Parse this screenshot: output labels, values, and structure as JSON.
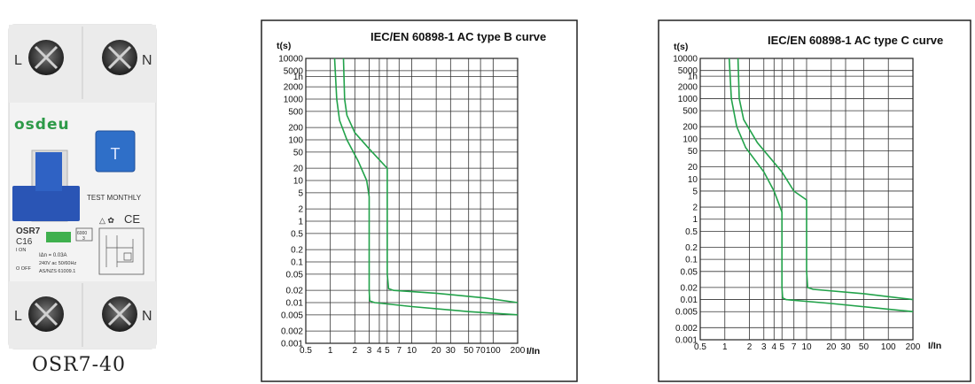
{
  "device": {
    "brand": "osdeu",
    "terminal_top_left": "L",
    "terminal_top_right": "N",
    "terminal_bottom_left": "L",
    "terminal_bottom_right": "N",
    "test_button": "T",
    "test_label": "TEST MONTHLY",
    "model": "OSR7",
    "rating": "C16",
    "on_label": "I ON",
    "off_label": "O OFF",
    "idn": "IΔn = 0.03A",
    "voltage": "240V  ac  50/60Hz",
    "standard": "AS/NZS 61009.1",
    "box_code": "6000",
    "box_num": "3",
    "ce_mark": "CE",
    "caption": "OSR7-40",
    "colors": {
      "body": "#f2f2f2",
      "brand": "#2d9a48",
      "button": "#2f6fc8",
      "handle": "#2a55b5"
    }
  },
  "chart_data": [
    {
      "type": "line",
      "title": "IEC/EN 60898-1 AC type B curve",
      "ylabel": "t(s)",
      "xlabel": "I/In",
      "xscale": "log",
      "yscale": "log",
      "xlim": [
        0.5,
        200
      ],
      "ylim": [
        0.001,
        10000
      ],
      "grid": true,
      "x_ticks": [
        {
          "v": 0.5,
          "label": "0.5"
        },
        {
          "v": 1,
          "label": "1"
        },
        {
          "v": 2,
          "label": "2"
        },
        {
          "v": 3,
          "label": "3"
        },
        {
          "v": 4,
          "label": "4"
        },
        {
          "v": 5,
          "label": "5"
        },
        {
          "v": 7,
          "label": "7"
        },
        {
          "v": 10,
          "label": "10"
        },
        {
          "v": 20,
          "label": "20"
        },
        {
          "v": 30,
          "label": "30"
        },
        {
          "v": 50,
          "label": "50"
        },
        {
          "v": 70,
          "label": "70"
        },
        {
          "v": 100,
          "label": "100"
        },
        {
          "v": 200,
          "label": "200"
        }
      ],
      "y_ticks": [
        {
          "v": 10000,
          "label": "10000"
        },
        {
          "v": 5000,
          "label": "5000"
        },
        {
          "v": 3600,
          "label": "1h"
        },
        {
          "v": 2000,
          "label": "2000"
        },
        {
          "v": 1000,
          "label": "1000"
        },
        {
          "v": 500,
          "label": "500"
        },
        {
          "v": 200,
          "label": "200"
        },
        {
          "v": 100,
          "label": "100"
        },
        {
          "v": 50,
          "label": "50"
        },
        {
          "v": 20,
          "label": "20"
        },
        {
          "v": 10,
          "label": "10"
        },
        {
          "v": 5,
          "label": "5"
        },
        {
          "v": 2,
          "label": "2"
        },
        {
          "v": 1,
          "label": "1"
        },
        {
          "v": 0.5,
          "label": "0.5"
        },
        {
          "v": 0.2,
          "label": "0.2"
        },
        {
          "v": 0.1,
          "label": "0.1"
        },
        {
          "v": 0.05,
          "label": "0.05"
        },
        {
          "v": 0.02,
          "label": "0.02"
        },
        {
          "v": 0.01,
          "label": "0.01"
        },
        {
          "v": 0.005,
          "label": "0.005"
        },
        {
          "v": 0.002,
          "label": "0.002"
        },
        {
          "v": 0.001,
          "label": "0.001"
        }
      ],
      "series": [
        {
          "points": [
            [
              1.13,
              10000
            ],
            [
              1.2,
              1000
            ],
            [
              1.3,
              300
            ],
            [
              1.6,
              100
            ],
            [
              2.2,
              30
            ],
            [
              2.8,
              10
            ],
            [
              3,
              4
            ],
            [
              3,
              0.02
            ],
            [
              3.05,
              0.011
            ],
            [
              3.5,
              0.01
            ],
            [
              10,
              0.008
            ],
            [
              50,
              0.006
            ],
            [
              200,
              0.005
            ]
          ]
        },
        {
          "points": [
            [
              1.45,
              10000
            ],
            [
              1.5,
              1000
            ],
            [
              1.6,
              400
            ],
            [
              2,
              150
            ],
            [
              3,
              60
            ],
            [
              5,
              20
            ],
            [
              5,
              0.05
            ],
            [
              5.2,
              0.022
            ],
            [
              6,
              0.02
            ],
            [
              20,
              0.017
            ],
            [
              80,
              0.013
            ],
            [
              200,
              0.01
            ]
          ]
        }
      ]
    },
    {
      "type": "line",
      "title": "IEC/EN 60898-1 AC type C curve",
      "ylabel": "t(s)",
      "xlabel": "I/In",
      "xscale": "log",
      "yscale": "log",
      "xlim": [
        0.5,
        200
      ],
      "ylim": [
        0.001,
        10000
      ],
      "grid": true,
      "x_ticks": [
        {
          "v": 0.5,
          "label": "0.5"
        },
        {
          "v": 1,
          "label": "1"
        },
        {
          "v": 2,
          "label": "2"
        },
        {
          "v": 3,
          "label": "3"
        },
        {
          "v": 4,
          "label": "4"
        },
        {
          "v": 5,
          "label": "5"
        },
        {
          "v": 7,
          "label": "7"
        },
        {
          "v": 10,
          "label": "10"
        },
        {
          "v": 20,
          "label": "20"
        },
        {
          "v": 30,
          "label": "30"
        },
        {
          "v": 50,
          "label": "50"
        },
        {
          "v": 100,
          "label": "100"
        },
        {
          "v": 200,
          "label": "200"
        }
      ],
      "y_ticks": [
        {
          "v": 10000,
          "label": "10000"
        },
        {
          "v": 5000,
          "label": "5000"
        },
        {
          "v": 3600,
          "label": "1h"
        },
        {
          "v": 2000,
          "label": "2000"
        },
        {
          "v": 1000,
          "label": "1000"
        },
        {
          "v": 500,
          "label": "500"
        },
        {
          "v": 200,
          "label": "200"
        },
        {
          "v": 100,
          "label": "100"
        },
        {
          "v": 50,
          "label": "50"
        },
        {
          "v": 20,
          "label": "20"
        },
        {
          "v": 10,
          "label": "10"
        },
        {
          "v": 5,
          "label": "5"
        },
        {
          "v": 2,
          "label": "2"
        },
        {
          "v": 1,
          "label": "1"
        },
        {
          "v": 0.5,
          "label": "0.5"
        },
        {
          "v": 0.2,
          "label": "0.2"
        },
        {
          "v": 0.1,
          "label": "0.1"
        },
        {
          "v": 0.05,
          "label": "0.05"
        },
        {
          "v": 0.02,
          "label": "0.02"
        },
        {
          "v": 0.01,
          "label": "0.01"
        },
        {
          "v": 0.005,
          "label": "0.005"
        },
        {
          "v": 0.002,
          "label": "0.002"
        },
        {
          "v": 0.001,
          "label": "0.001"
        }
      ],
      "series": [
        {
          "points": [
            [
              1.13,
              10000
            ],
            [
              1.2,
              1000
            ],
            [
              1.4,
              200
            ],
            [
              1.8,
              60
            ],
            [
              3,
              15
            ],
            [
              4,
              5
            ],
            [
              5,
              1.5
            ],
            [
              5,
              0.02
            ],
            [
              5.1,
              0.011
            ],
            [
              5.6,
              0.01
            ],
            [
              20,
              0.008
            ],
            [
              80,
              0.006
            ],
            [
              200,
              0.005
            ]
          ]
        },
        {
          "points": [
            [
              1.45,
              10000
            ],
            [
              1.5,
              1000
            ],
            [
              1.7,
              300
            ],
            [
              2.5,
              80
            ],
            [
              5,
              15
            ],
            [
              7,
              5
            ],
            [
              10,
              3
            ],
            [
              10,
              0.05
            ],
            [
              10.3,
              0.02
            ],
            [
              12,
              0.018
            ],
            [
              50,
              0.014
            ],
            [
              200,
              0.01
            ]
          ]
        }
      ]
    }
  ]
}
